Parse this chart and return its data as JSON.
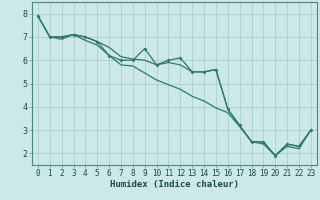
{
  "xlabel": "Humidex (Indice chaleur)",
  "bg_color": "#cce8e8",
  "grid_color": "#aacfcf",
  "line_color": "#2d7a6a",
  "line1_x": [
    0,
    1,
    2,
    3,
    4,
    5,
    6,
    7,
    8,
    9,
    10,
    11,
    12,
    13,
    14,
    15,
    16,
    17,
    18,
    19,
    20,
    21,
    22,
    23
  ],
  "line1_y": [
    7.9,
    7.0,
    7.0,
    7.1,
    7.0,
    6.8,
    6.2,
    6.0,
    6.0,
    6.5,
    5.8,
    6.0,
    6.1,
    5.5,
    5.5,
    5.6,
    3.9,
    3.2,
    2.5,
    2.5,
    1.9,
    2.4,
    2.3,
    3.0
  ],
  "line2_x": [
    0,
    1,
    2,
    3,
    4,
    5,
    6,
    7,
    8,
    9,
    10,
    11,
    12,
    13,
    14,
    15,
    16,
    17,
    18,
    19,
    20,
    21,
    22,
    23
  ],
  "line2_y": [
    7.9,
    7.0,
    7.0,
    7.1,
    7.0,
    6.8,
    6.55,
    6.15,
    6.05,
    6.0,
    5.8,
    5.9,
    5.8,
    5.5,
    5.5,
    5.6,
    3.9,
    3.2,
    2.5,
    2.5,
    1.9,
    2.4,
    2.3,
    3.0
  ],
  "line3_x": [
    0,
    1,
    2,
    3,
    4,
    5,
    6,
    7,
    8,
    9,
    10,
    11,
    12,
    13,
    14,
    15,
    16,
    17,
    18,
    19,
    20,
    21,
    22,
    23
  ],
  "line3_y": [
    7.9,
    7.0,
    6.9,
    7.1,
    6.85,
    6.65,
    6.2,
    5.8,
    5.75,
    5.45,
    5.15,
    4.95,
    4.75,
    4.45,
    4.25,
    3.95,
    3.75,
    3.15,
    2.5,
    2.4,
    1.9,
    2.3,
    2.2,
    3.0
  ],
  "xlim": [
    -0.5,
    23.5
  ],
  "ylim": [
    1.5,
    8.5
  ],
  "yticks": [
    2,
    3,
    4,
    5,
    6,
    7,
    8
  ],
  "xticks": [
    0,
    1,
    2,
    3,
    4,
    5,
    6,
    7,
    8,
    9,
    10,
    11,
    12,
    13,
    14,
    15,
    16,
    17,
    18,
    19,
    20,
    21,
    22,
    23
  ],
  "tick_fontsize": 5.5,
  "xlabel_fontsize": 6.5,
  "marker_size": 2.0,
  "line_width": 0.9
}
